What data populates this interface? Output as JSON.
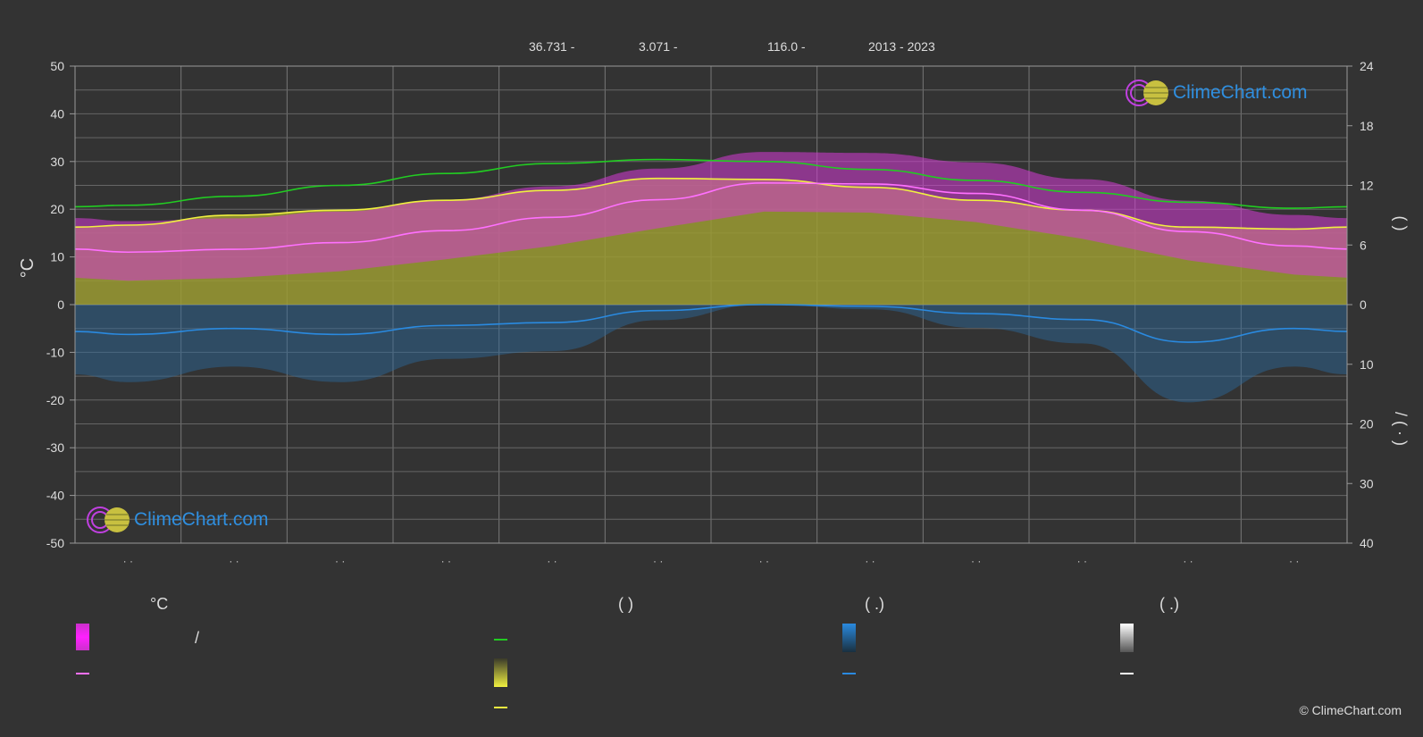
{
  "header": {
    "lat": "36.731 -",
    "lon": "3.071 -",
    "elev": "116.0 -",
    "years": "2013 - 2023"
  },
  "brand": {
    "text": "ClimeChart.com"
  },
  "copyright": "© ClimeChart.com",
  "legend": {
    "col1_head": "°C",
    "col1_sep": "/",
    "col2_head": "(          )",
    "col3_head": "(   .)",
    "col4_head": "(   .)"
  },
  "colors": {
    "background": "#333333",
    "temp_band": "#d63ad6",
    "temp_line": "#ff70ff",
    "daylight_line": "#22cc22",
    "sunshine_band": "#9b9b33",
    "sunshine_line": "#f0f040",
    "precip_band": "#2a6aa0",
    "precip_line": "#2a8ae0",
    "snow_line": "#ffffff"
  },
  "chart_data": {
    "type": "line",
    "left_axis": {
      "label": "°C",
      "ylim": [
        -50,
        50
      ],
      "ticks": [
        "50",
        "40",
        "30",
        "20",
        "10",
        "0",
        "-10",
        "-20",
        "-30",
        "-40",
        "-50"
      ]
    },
    "right_axis_top": {
      "ylim": [
        0,
        24
      ],
      "ticks": [
        "24",
        "18",
        "12",
        "6",
        "0"
      ],
      "label_glyphs": "(    )"
    },
    "right_axis_bottom": {
      "ylim": [
        0,
        40
      ],
      "ticks": [
        "0",
        "10",
        "20",
        "30",
        "40"
      ],
      "label_glyphs": "/   (  ·  )"
    },
    "x_tick_labels": [
      "· ·",
      "· ·",
      "· ·",
      "· ·",
      "· ·",
      "· ·",
      "· ·",
      "· ·",
      "· ·",
      "· ·",
      "· ·",
      "· ·"
    ],
    "months": 12,
    "series": [
      {
        "key": "daylight_hours",
        "axis": "right_top",
        "values": [
          10.0,
          10.9,
          12.0,
          13.2,
          14.2,
          14.6,
          14.4,
          13.6,
          12.5,
          11.3,
          10.3,
          9.7
        ]
      },
      {
        "key": "sunshine_hours",
        "axis": "right_top",
        "values": [
          8.0,
          9.0,
          9.5,
          10.5,
          11.5,
          12.7,
          12.6,
          11.8,
          10.5,
          9.5,
          7.8,
          7.6
        ]
      },
      {
        "key": "avg_temperature",
        "axis": "left",
        "values": [
          11.0,
          11.6,
          13.0,
          15.5,
          18.3,
          22.0,
          25.5,
          25.3,
          23.3,
          19.8,
          15.3,
          12.3
        ]
      },
      {
        "key": "precipitation",
        "axis": "right_bottom",
        "values": [
          5.0,
          4.0,
          5.0,
          3.5,
          3.0,
          1.0,
          0.0,
          0.3,
          1.5,
          2.5,
          6.3,
          4.0
        ]
      }
    ]
  }
}
